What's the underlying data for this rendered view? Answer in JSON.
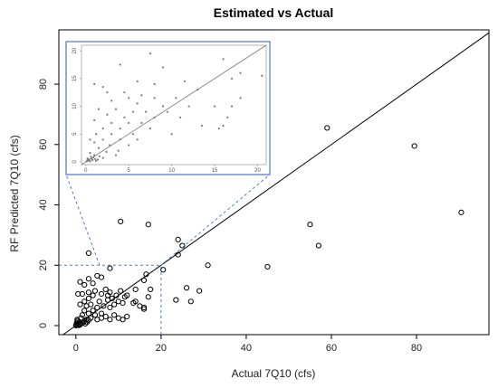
{
  "chart_data": {
    "type": "scatter",
    "title": "Estimated vs Actual",
    "xlabel": "Actual 7Q10 (cfs)",
    "ylabel": "RF Predicted 7Q10 (cfs)",
    "xlim": [
      -4,
      97
    ],
    "ylim": [
      -3,
      98
    ],
    "xticks": [
      "0",
      "20",
      "40",
      "60",
      "80"
    ],
    "yticks": [
      "0",
      "20",
      "40",
      "60",
      "80"
    ],
    "reference_line": "1:1",
    "zoom_region": {
      "xlim": [
        0,
        20
      ],
      "ylim": [
        0,
        20
      ]
    },
    "inset": {
      "xlim": [
        -0.5,
        21
      ],
      "ylim": [
        -0.5,
        21
      ],
      "xticks": [
        "0",
        "5",
        "10",
        "15",
        "20"
      ],
      "yticks": [
        "0",
        "5",
        "10",
        "15",
        "20"
      ]
    },
    "points": [
      [
        90.5,
        37.5
      ],
      [
        79.5,
        59.5
      ],
      [
        59,
        65.5
      ],
      [
        57,
        26.5
      ],
      [
        55,
        33.5
      ],
      [
        45,
        19.5
      ],
      [
        31,
        20
      ],
      [
        29,
        11.5
      ],
      [
        27,
        8
      ],
      [
        26,
        12.5
      ],
      [
        25,
        26.5
      ],
      [
        24,
        28.5
      ],
      [
        24,
        23.5
      ],
      [
        23.5,
        8.5
      ],
      [
        20.5,
        18.5
      ],
      [
        17,
        33.5
      ],
      [
        16.5,
        17
      ],
      [
        16,
        15
      ],
      [
        17.5,
        12
      ],
      [
        17,
        9.5
      ],
      [
        16,
        6
      ],
      [
        16,
        5.5
      ],
      [
        15,
        6.5
      ],
      [
        14,
        8
      ],
      [
        13.5,
        7.5
      ],
      [
        14,
        12
      ],
      [
        10.5,
        34.5
      ],
      [
        8,
        19
      ],
      [
        3,
        24
      ],
      [
        5,
        16.5
      ],
      [
        6,
        16
      ],
      [
        4,
        14
      ],
      [
        3,
        15.5
      ],
      [
        1,
        14.5
      ],
      [
        2,
        13.5
      ],
      [
        0.5,
        10.5
      ],
      [
        1.5,
        10.5
      ],
      [
        3,
        11
      ],
      [
        4.5,
        11.5
      ],
      [
        4,
        10
      ],
      [
        6,
        10.5
      ],
      [
        5.5,
        8
      ],
      [
        7,
        12
      ],
      [
        7.5,
        10
      ],
      [
        8,
        11
      ],
      [
        8.5,
        9
      ],
      [
        9.5,
        10
      ],
      [
        10,
        8
      ],
      [
        10.5,
        11.5
      ],
      [
        11,
        7.5
      ],
      [
        12,
        10
      ],
      [
        11.5,
        9.5
      ],
      [
        9,
        7
      ],
      [
        7.5,
        8.5
      ],
      [
        3,
        9
      ],
      [
        2,
        8
      ],
      [
        2.5,
        6.5
      ],
      [
        3.5,
        7
      ],
      [
        5,
        6
      ],
      [
        4,
        5
      ],
      [
        6.5,
        6.5
      ],
      [
        8,
        6
      ],
      [
        1,
        7
      ],
      [
        2,
        5
      ],
      [
        3,
        4
      ],
      [
        4.5,
        3.5
      ],
      [
        6,
        4
      ],
      [
        7,
        3
      ],
      [
        9,
        3.5
      ],
      [
        10,
        2.5
      ],
      [
        11,
        2
      ],
      [
        12,
        3
      ],
      [
        8,
        2
      ],
      [
        6,
        2.5
      ],
      [
        5,
        2
      ],
      [
        3.5,
        2.5
      ],
      [
        2.5,
        2
      ],
      [
        1.5,
        3.5
      ],
      [
        0.5,
        0.3
      ],
      [
        1,
        0.5
      ],
      [
        0.2,
        1
      ],
      [
        0.8,
        1.2
      ],
      [
        1.5,
        0.8
      ],
      [
        2,
        1.5
      ],
      [
        0.3,
        2
      ],
      [
        1.2,
        2.5
      ],
      [
        2.2,
        0.6
      ],
      [
        0.6,
        0.1
      ],
      [
        0.1,
        0.4
      ],
      [
        1.8,
        1.1
      ],
      [
        0.9,
        0.2
      ],
      [
        0.4,
        1.6
      ],
      [
        2.6,
        1.1
      ],
      [
        3,
        1.8
      ],
      [
        0,
        0
      ],
      [
        0.2,
        0.2
      ]
    ],
    "inset_points": [
      [
        7.5,
        19.5
      ],
      [
        16,
        18.5
      ],
      [
        4,
        17.5
      ],
      [
        9,
        17
      ],
      [
        18,
        16
      ],
      [
        20.5,
        15.5
      ],
      [
        17,
        15
      ],
      [
        6,
        14.5
      ],
      [
        8,
        14
      ],
      [
        11.5,
        14.5
      ],
      [
        1,
        14
      ],
      [
        2,
        13.5
      ],
      [
        13,
        13
      ],
      [
        2.5,
        12.5
      ],
      [
        4.5,
        12.5
      ],
      [
        6.5,
        12
      ],
      [
        8,
        11.5
      ],
      [
        10.5,
        11.5
      ],
      [
        5,
        11.5
      ],
      [
        18,
        11.5
      ],
      [
        3,
        11
      ],
      [
        6,
        10.5
      ],
      [
        9,
        10
      ],
      [
        12,
        10
      ],
      [
        15,
        10
      ],
      [
        17,
        10
      ],
      [
        1.5,
        9.5
      ],
      [
        3.5,
        9.5
      ],
      [
        5.5,
        9
      ],
      [
        7,
        9
      ],
      [
        9.5,
        9
      ],
      [
        2.5,
        8.5
      ],
      [
        4.5,
        8
      ],
      [
        8,
        8
      ],
      [
        11,
        8
      ],
      [
        16.5,
        8
      ],
      [
        1,
        7.5
      ],
      [
        3,
        7
      ],
      [
        5,
        7
      ],
      [
        6.5,
        7
      ],
      [
        13.5,
        6.5
      ],
      [
        16,
        6.5
      ],
      [
        2,
        6
      ],
      [
        4,
        6
      ],
      [
        7.5,
        6
      ],
      [
        15.5,
        6
      ],
      [
        1.2,
        5
      ],
      [
        3,
        5
      ],
      [
        5.5,
        5
      ],
      [
        10,
        5
      ],
      [
        0.5,
        4
      ],
      [
        2,
        4
      ],
      [
        4,
        4
      ],
      [
        6,
        4
      ],
      [
        1,
        3.5
      ],
      [
        2.8,
        3
      ],
      [
        3.8,
        2
      ],
      [
        5,
        3
      ],
      [
        1.5,
        2.5
      ],
      [
        2.4,
        1.8
      ],
      [
        3.5,
        1.2
      ],
      [
        0.5,
        1.6
      ],
      [
        1,
        1.2
      ],
      [
        1.6,
        1
      ],
      [
        2,
        0.7
      ],
      [
        0.2,
        0.6
      ],
      [
        0.6,
        0.9
      ],
      [
        0.8,
        0.3
      ],
      [
        1.1,
        0.5
      ],
      [
        0.3,
        0.2
      ],
      [
        1.4,
        0.4
      ],
      [
        0.1,
        0.1
      ],
      [
        0.4,
        0.4
      ],
      [
        0.7,
        0.5
      ],
      [
        0.9,
        0.8
      ],
      [
        0.2,
        0.3
      ],
      [
        1.2,
        0.2
      ],
      [
        0.5,
        0.1
      ]
    ]
  },
  "colors": {
    "point": "#000000",
    "inset_point": "#7a7a7a",
    "inset_border": "#6b8fd6",
    "zoom_guides": "#4a7bd0",
    "reference_line": "#000000",
    "inset_reference_line": "#777777"
  }
}
